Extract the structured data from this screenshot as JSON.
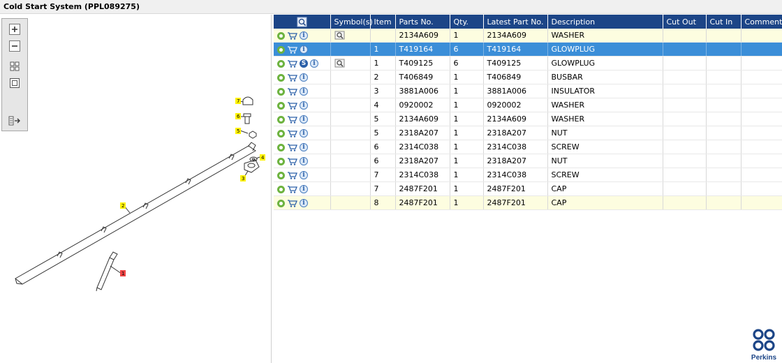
{
  "window": {
    "title": "Cold Start System (PPL089275)"
  },
  "toolbar": {
    "icons": [
      "zoom-in-icon",
      "zoom-out-icon",
      "fit-page-icon",
      "actual-size-icon",
      "export-icon"
    ]
  },
  "diagram": {
    "callouts": [
      "1",
      "2",
      "3",
      "4",
      "5",
      "6",
      "7"
    ]
  },
  "table": {
    "headers": [
      "Symbol(s)",
      "Item",
      "Parts No.",
      "Qty.",
      "Latest Part No.",
      "Description",
      "Cut Out",
      "Cut In",
      "Comment"
    ],
    "rows": [
      {
        "item": "",
        "parts_no": "2134A609",
        "qty": "1",
        "latest": "2134A609",
        "desc": "WASHER",
        "cut_out": "",
        "cut_in": "",
        "comment": "",
        "highlight": "yellow",
        "s_badge": false,
        "symbol": true
      },
      {
        "item": "1",
        "parts_no": "T419164",
        "qty": "6",
        "latest": "T419164",
        "desc": "GLOWPLUG",
        "cut_out": "",
        "cut_in": "",
        "comment": "",
        "highlight": "selected",
        "s_badge": false,
        "symbol": false
      },
      {
        "item": "1",
        "parts_no": "T409125",
        "qty": "6",
        "latest": "T409125",
        "desc": "GLOWPLUG",
        "cut_out": "",
        "cut_in": "",
        "comment": "",
        "highlight": "none",
        "s_badge": true,
        "symbol": true
      },
      {
        "item": "2",
        "parts_no": "T406849",
        "qty": "1",
        "latest": "T406849",
        "desc": "BUSBAR",
        "cut_out": "",
        "cut_in": "",
        "comment": "",
        "highlight": "none",
        "s_badge": false,
        "symbol": false
      },
      {
        "item": "3",
        "parts_no": "3881A006",
        "qty": "1",
        "latest": "3881A006",
        "desc": "INSULATOR",
        "cut_out": "",
        "cut_in": "",
        "comment": "",
        "highlight": "none",
        "s_badge": false,
        "symbol": false
      },
      {
        "item": "4",
        "parts_no": "0920002",
        "qty": "1",
        "latest": "0920002",
        "desc": "WASHER",
        "cut_out": "",
        "cut_in": "",
        "comment": "",
        "highlight": "none",
        "s_badge": false,
        "symbol": false
      },
      {
        "item": "5",
        "parts_no": "2134A609",
        "qty": "1",
        "latest": "2134A609",
        "desc": "WASHER",
        "cut_out": "",
        "cut_in": "",
        "comment": "",
        "highlight": "none",
        "s_badge": false,
        "symbol": false
      },
      {
        "item": "5",
        "parts_no": "2318A207",
        "qty": "1",
        "latest": "2318A207",
        "desc": "NUT",
        "cut_out": "",
        "cut_in": "",
        "comment": "",
        "highlight": "none",
        "s_badge": false,
        "symbol": false
      },
      {
        "item": "6",
        "parts_no": "2314C038",
        "qty": "1",
        "latest": "2314C038",
        "desc": "SCREW",
        "cut_out": "",
        "cut_in": "",
        "comment": "",
        "highlight": "none",
        "s_badge": false,
        "symbol": false
      },
      {
        "item": "6",
        "parts_no": "2318A207",
        "qty": "1",
        "latest": "2318A207",
        "desc": "NUT",
        "cut_out": "",
        "cut_in": "",
        "comment": "",
        "highlight": "none",
        "s_badge": false,
        "symbol": false
      },
      {
        "item": "7",
        "parts_no": "2314C038",
        "qty": "1",
        "latest": "2314C038",
        "desc": "SCREW",
        "cut_out": "",
        "cut_in": "",
        "comment": "",
        "highlight": "none",
        "s_badge": false,
        "symbol": false
      },
      {
        "item": "7",
        "parts_no": "2487F201",
        "qty": "1",
        "latest": "2487F201",
        "desc": "CAP",
        "cut_out": "",
        "cut_in": "",
        "comment": "",
        "highlight": "none",
        "s_badge": false,
        "symbol": false
      },
      {
        "item": "8",
        "parts_no": "2487F201",
        "qty": "1",
        "latest": "2487F201",
        "desc": "CAP",
        "cut_out": "",
        "cut_in": "",
        "comment": "",
        "highlight": "yellow",
        "s_badge": false,
        "symbol": false
      }
    ]
  },
  "logo": {
    "text": "Perkins"
  },
  "colors": {
    "header_bg": "#1c4587",
    "selected_row": "#3b8ed8",
    "yellow_row": "#fdfde0",
    "gear": "#6db33f"
  }
}
